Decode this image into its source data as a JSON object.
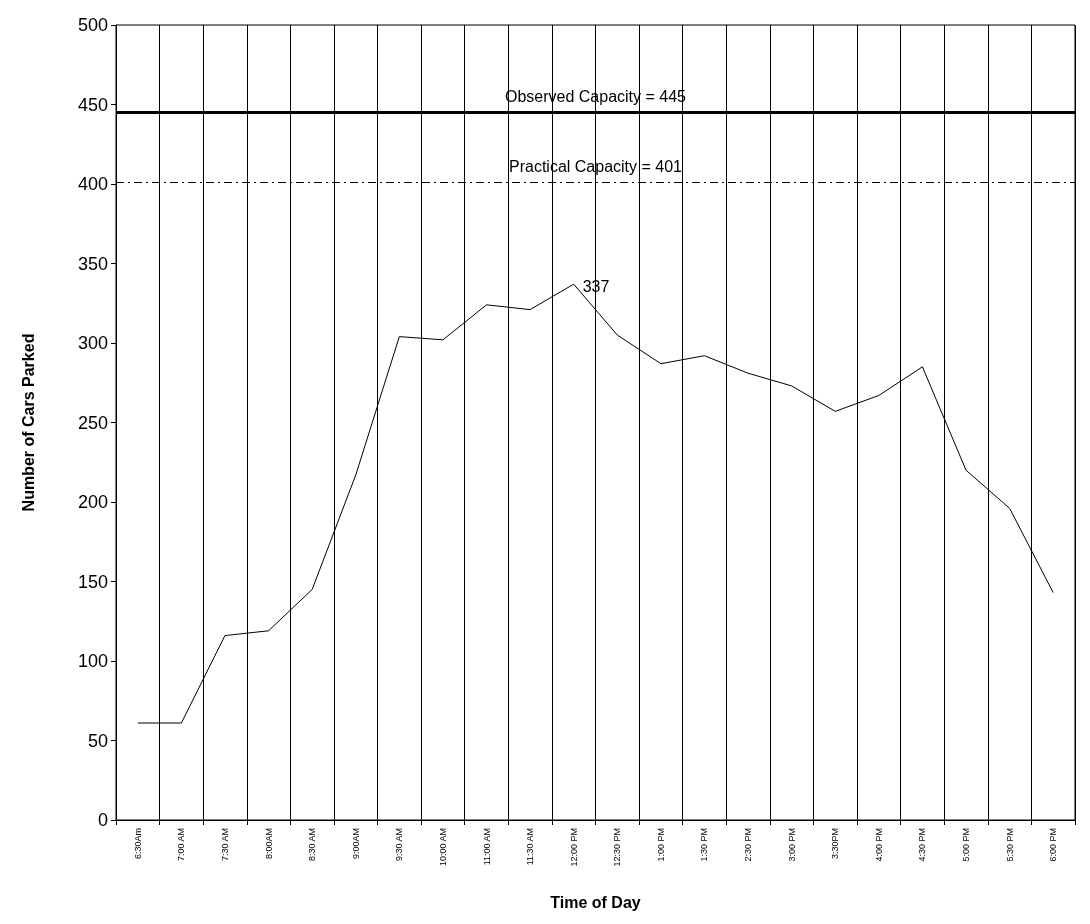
{
  "chart_data": {
    "type": "line",
    "xlabel": "Time of Day",
    "ylabel": "Number of Cars Parked",
    "categories": [
      "6:30Am",
      "7:00 AM",
      "7:30 AM",
      "8:00AM",
      "8:30 AM",
      "9:00AM",
      "9:30 AM",
      "10:00 AM",
      "11:00 AM",
      "11:30 AM",
      "12:00 PM",
      "12:30 PM",
      "1:00 PM",
      "1:30 PM",
      "2:30 PM",
      "3:00 PM",
      "3:30PM",
      "4:00 PM",
      "4:30 PM",
      "5:00 PM",
      "5:30 PM",
      "6:00 PM"
    ],
    "series": [
      {
        "color": "#000000",
        "values": [
          61,
          61,
          116,
          119,
          145,
          217,
          304,
          302,
          324,
          321,
          337,
          305,
          287,
          292,
          281,
          273,
          257,
          267,
          285,
          220,
          196,
          143
        ]
      }
    ],
    "ylim": [
      0,
      500
    ],
    "yticks": [
      0,
      50,
      100,
      150,
      200,
      250,
      300,
      350,
      400,
      450,
      500
    ],
    "grid": "x",
    "marker": "none",
    "line_style": "solid",
    "ref_lines": [
      {
        "axis": "y",
        "value": 445,
        "label": "Observed Capacity = 445",
        "line_style": "solid",
        "color": "#000000"
      },
      {
        "axis": "y",
        "value": 401,
        "label": "Practical Capacity = 401",
        "line_style": "dashed",
        "color": "#000000"
      }
    ],
    "annotations": [
      {
        "text": "337",
        "x": "12:00 PM",
        "y": 337
      }
    ]
  }
}
